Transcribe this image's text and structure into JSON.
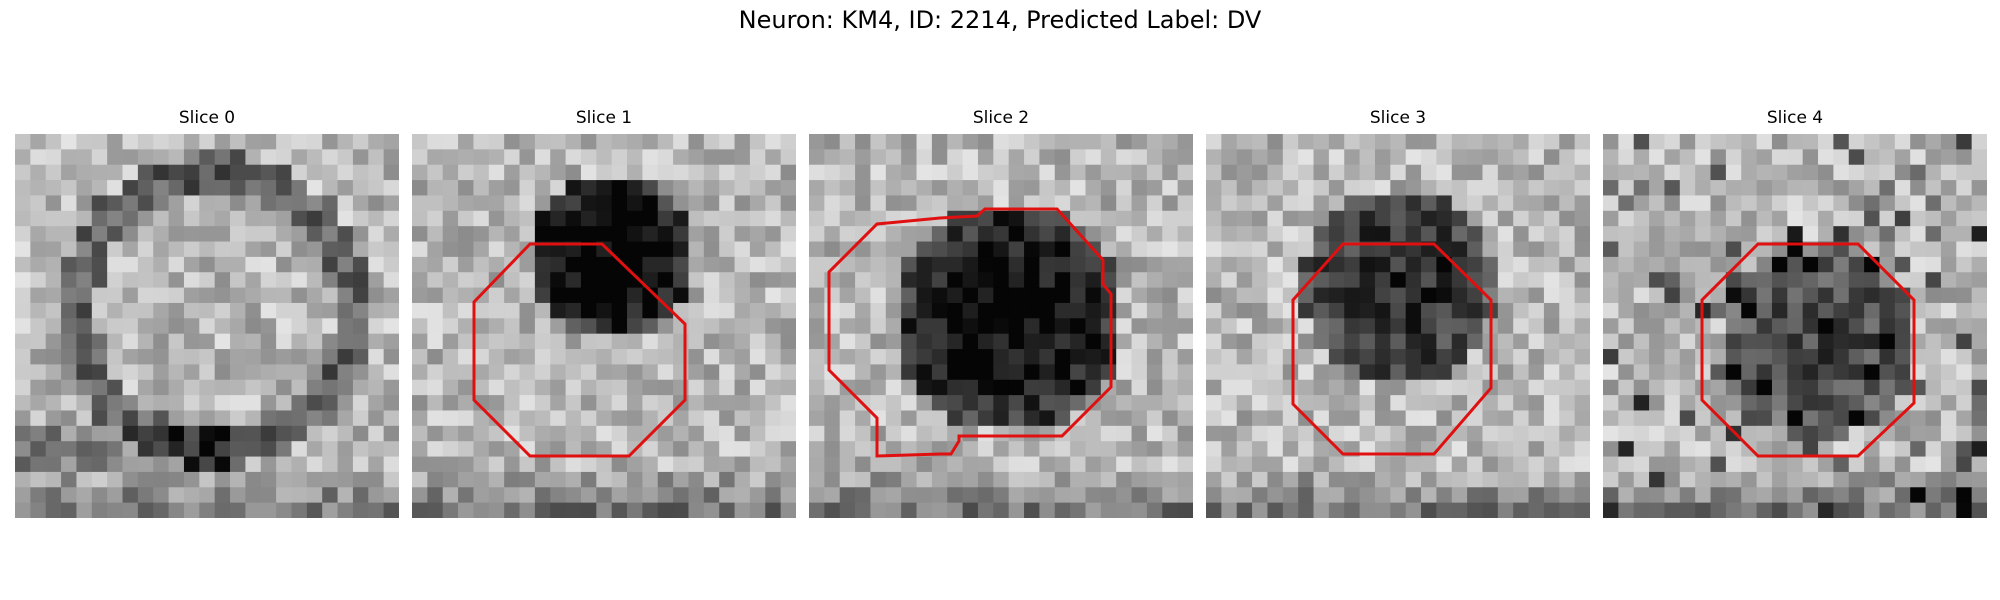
{
  "figure": {
    "title": "Neuron: KM4, ID: 2214, Predicted Label: DV",
    "contour_color": "#e01010",
    "panels": [
      {
        "title": "Slice 0",
        "cell_tone": "light",
        "has_contour": false
      },
      {
        "title": "Slice 1",
        "cell_tone": "dark",
        "has_contour": true
      },
      {
        "title": "Slice 2",
        "cell_tone": "dark",
        "has_contour": true
      },
      {
        "title": "Slice 3",
        "cell_tone": "dark",
        "has_contour": true
      },
      {
        "title": "Slice 4",
        "cell_tone": "mottled",
        "has_contour": true
      }
    ]
  }
}
